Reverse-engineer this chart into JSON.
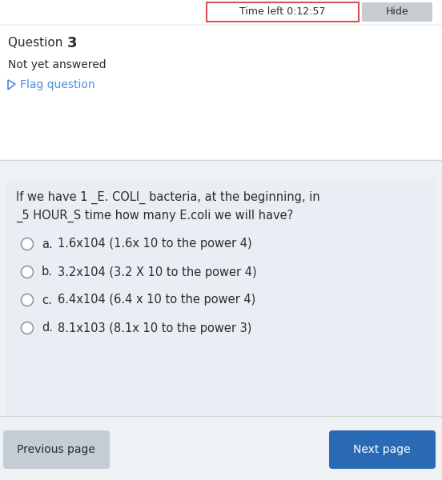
{
  "bg_color": "#eef2f5",
  "white_bg": "#ffffff",
  "light_blue_bg": "#e8eef4",
  "timer_text": "Time left 0:12:57",
  "timer_border": "#d9534f",
  "hide_text": "Hide",
  "hide_bg": "#c8cdd2",
  "question_label": "Question ",
  "question_number": "3",
  "not_answered": "Not yet answered",
  "flag_text": "Flag question",
  "flag_color": "#4a90d9",
  "question_text_line1": "If we have 1 _E. COLI_ bacteria, at the beginning, in",
  "question_text_line2": "_5 HOUR_S time how many E.coli we will have?",
  "options": [
    {
      "label": "a.",
      "text": "1.6x104 (1.6x 10 to the power 4)"
    },
    {
      "label": "b.",
      "text": "3.2x104 (3.2 X 10 to the power 4)"
    },
    {
      "label": "c.",
      "text": "6.4x104 (6.4 x 10 to the power 4)"
    },
    {
      "label": "d.",
      "text": "8.1x103 (8.1x 10 to the power 3)"
    }
  ],
  "prev_btn_text": "Previous page",
  "prev_btn_bg": "#c4cdd6",
  "next_btn_text": "Next page",
  "next_btn_bg": "#2a6ab5",
  "separator_color": "#d0d5da",
  "text_dark": "#2c2c2c",
  "circle_edge": "#999999"
}
